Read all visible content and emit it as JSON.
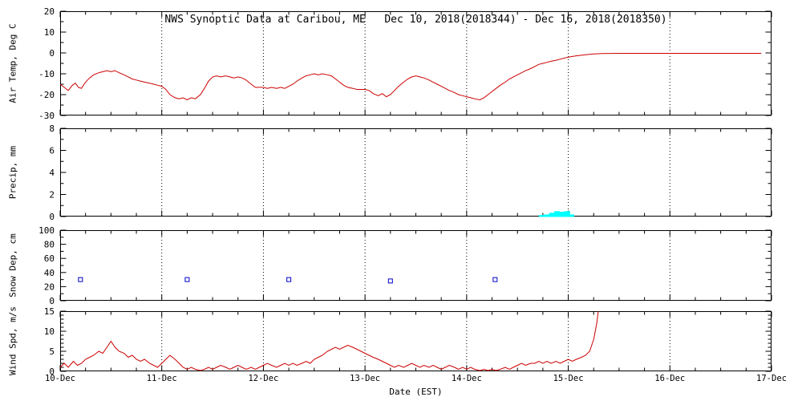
{
  "title": "NWS Synoptic Data at Caribou, ME   Dec 10, 2018(2018344) - Dec 16, 2018(2018350)",
  "xlabel": "Date (EST)",
  "x_ticks": [
    "10-Dec",
    "11-Dec",
    "12-Dec",
    "13-Dec",
    "14-Dec",
    "15-Dec",
    "16-Dec",
    "17-Dec"
  ],
  "colors": {
    "temp_line": "#cc0000",
    "wind_line": "#cc0000",
    "precip_bar": "#00ffff",
    "snow_marker": "#0000cc",
    "axis": "#000000",
    "grid": "#000000",
    "background": "#ffffff"
  },
  "chart_data": [
    {
      "type": "line",
      "name": "air-temp",
      "ylabel": "Air Temp, Deg C",
      "ylim": [
        -30,
        20
      ],
      "yticks": [
        -30,
        -20,
        -10,
        0,
        10,
        20
      ],
      "yminor": 5,
      "color": "#cc0000",
      "points": [
        [
          0.0,
          -15.0
        ],
        [
          0.04,
          -16.5
        ],
        [
          0.08,
          -18.0
        ],
        [
          0.12,
          -15.5
        ],
        [
          0.15,
          -14.5
        ],
        [
          0.18,
          -16.5
        ],
        [
          0.21,
          -17.0
        ],
        [
          0.25,
          -14.0
        ],
        [
          0.29,
          -12.0
        ],
        [
          0.33,
          -10.5
        ],
        [
          0.38,
          -9.5
        ],
        [
          0.42,
          -9.0
        ],
        [
          0.46,
          -8.5
        ],
        [
          0.5,
          -9.0
        ],
        [
          0.54,
          -8.5
        ],
        [
          0.58,
          -9.5
        ],
        [
          0.63,
          -10.5
        ],
        [
          0.67,
          -11.5
        ],
        [
          0.71,
          -12.5
        ],
        [
          0.75,
          -13.0
        ],
        [
          0.79,
          -13.5
        ],
        [
          0.83,
          -14.0
        ],
        [
          0.88,
          -14.5
        ],
        [
          0.92,
          -15.0
        ],
        [
          0.96,
          -15.5
        ],
        [
          1.0,
          -16.0
        ],
        [
          1.04,
          -17.5
        ],
        [
          1.08,
          -20.0
        ],
        [
          1.13,
          -21.5
        ],
        [
          1.17,
          -22.0
        ],
        [
          1.21,
          -21.5
        ],
        [
          1.25,
          -22.5
        ],
        [
          1.29,
          -21.5
        ],
        [
          1.33,
          -22.0
        ],
        [
          1.38,
          -20.0
        ],
        [
          1.42,
          -17.0
        ],
        [
          1.46,
          -13.5
        ],
        [
          1.5,
          -11.5
        ],
        [
          1.54,
          -11.0
        ],
        [
          1.58,
          -11.5
        ],
        [
          1.63,
          -11.0
        ],
        [
          1.67,
          -11.5
        ],
        [
          1.71,
          -12.0
        ],
        [
          1.75,
          -11.5
        ],
        [
          1.79,
          -12.0
        ],
        [
          1.83,
          -13.0
        ],
        [
          1.88,
          -15.0
        ],
        [
          1.92,
          -16.5
        ],
        [
          1.96,
          -16.5
        ],
        [
          2.0,
          -16.5
        ],
        [
          2.04,
          -17.0
        ],
        [
          2.08,
          -16.5
        ],
        [
          2.13,
          -17.0
        ],
        [
          2.17,
          -16.5
        ],
        [
          2.21,
          -17.0
        ],
        [
          2.25,
          -16.0
        ],
        [
          2.29,
          -15.0
        ],
        [
          2.33,
          -13.5
        ],
        [
          2.38,
          -12.0
        ],
        [
          2.42,
          -11.0
        ],
        [
          2.46,
          -10.5
        ],
        [
          2.5,
          -10.0
        ],
        [
          2.54,
          -10.5
        ],
        [
          2.58,
          -10.0
        ],
        [
          2.63,
          -10.5
        ],
        [
          2.67,
          -11.0
        ],
        [
          2.71,
          -12.5
        ],
        [
          2.75,
          -14.0
        ],
        [
          2.79,
          -15.5
        ],
        [
          2.83,
          -16.5
        ],
        [
          2.88,
          -17.0
        ],
        [
          2.92,
          -17.5
        ],
        [
          2.96,
          -17.5
        ],
        [
          3.0,
          -17.5
        ],
        [
          3.04,
          -18.0
        ],
        [
          3.08,
          -19.5
        ],
        [
          3.13,
          -20.5
        ],
        [
          3.17,
          -19.5
        ],
        [
          3.21,
          -21.0
        ],
        [
          3.25,
          -20.0
        ],
        [
          3.29,
          -18.0
        ],
        [
          3.33,
          -16.0
        ],
        [
          3.38,
          -14.0
        ],
        [
          3.42,
          -12.5
        ],
        [
          3.46,
          -11.5
        ],
        [
          3.5,
          -11.0
        ],
        [
          3.54,
          -11.5
        ],
        [
          3.58,
          -12.0
        ],
        [
          3.63,
          -13.0
        ],
        [
          3.67,
          -14.0
        ],
        [
          3.71,
          -15.0
        ],
        [
          3.75,
          -16.0
        ],
        [
          3.79,
          -17.0
        ],
        [
          3.83,
          -18.0
        ],
        [
          3.88,
          -19.0
        ],
        [
          3.92,
          -20.0
        ],
        [
          3.96,
          -20.5
        ],
        [
          4.0,
          -21.0
        ],
        [
          4.04,
          -21.5
        ],
        [
          4.08,
          -22.0
        ],
        [
          4.13,
          -22.5
        ],
        [
          4.17,
          -21.5
        ],
        [
          4.21,
          -20.0
        ],
        [
          4.25,
          -18.5
        ],
        [
          4.29,
          -17.0
        ],
        [
          4.33,
          -15.5
        ],
        [
          4.38,
          -14.0
        ],
        [
          4.42,
          -12.5
        ],
        [
          4.46,
          -11.5
        ],
        [
          4.5,
          -10.5
        ],
        [
          4.54,
          -9.5
        ],
        [
          4.58,
          -8.5
        ],
        [
          4.63,
          -7.5
        ],
        [
          4.67,
          -6.5
        ],
        [
          4.71,
          -5.5
        ],
        [
          4.75,
          -5.0
        ],
        [
          4.79,
          -4.5
        ],
        [
          4.83,
          -4.0
        ],
        [
          4.88,
          -3.5
        ],
        [
          4.92,
          -3.0
        ],
        [
          4.96,
          -2.5
        ],
        [
          5.0,
          -2.0
        ],
        [
          5.04,
          -1.7
        ],
        [
          5.08,
          -1.4
        ],
        [
          5.13,
          -1.1
        ],
        [
          5.17,
          -0.9
        ],
        [
          5.21,
          -0.7
        ],
        [
          5.25,
          -0.5
        ],
        [
          5.29,
          -0.4
        ],
        [
          5.33,
          -0.3
        ],
        [
          5.5,
          -0.2
        ],
        [
          5.75,
          -0.2
        ],
        [
          6.0,
          -0.2
        ],
        [
          6.25,
          -0.2
        ],
        [
          6.5,
          -0.2
        ],
        [
          6.75,
          -0.2
        ],
        [
          6.9,
          -0.2
        ]
      ]
    },
    {
      "type": "bar",
      "name": "precip",
      "ylabel": "Precip, mm",
      "ylim": [
        0,
        8
      ],
      "yticks": [
        0,
        2,
        4,
        6,
        8
      ],
      "yminor": 1,
      "color": "#00ffff",
      "bar_width_days": 0.05,
      "points": [
        [
          4.74,
          0.1
        ],
        [
          4.79,
          0.15
        ],
        [
          4.84,
          0.3
        ],
        [
          4.89,
          0.45
        ],
        [
          4.94,
          0.4
        ],
        [
          4.99,
          0.45
        ],
        [
          5.03,
          0.15
        ]
      ]
    },
    {
      "type": "scatter",
      "name": "snow-depth",
      "ylabel": "Snow Dep, cm",
      "ylim": [
        0,
        100
      ],
      "yticks": [
        0,
        20,
        40,
        60,
        80,
        100
      ],
      "yminor": 10,
      "color": "#0000cc",
      "points": [
        [
          0.2,
          30
        ],
        [
          1.25,
          30
        ],
        [
          2.25,
          30
        ],
        [
          3.25,
          28
        ],
        [
          4.28,
          30
        ]
      ]
    },
    {
      "type": "line",
      "name": "wind-speed",
      "ylabel": "Wind Spd, m/s",
      "ylim": [
        0,
        15
      ],
      "yticks": [
        0,
        5,
        10,
        15
      ],
      "yminor": 1,
      "color": "#cc0000",
      "points": [
        [
          0.0,
          1.0
        ],
        [
          0.04,
          2.0
        ],
        [
          0.08,
          1.0
        ],
        [
          0.13,
          2.5
        ],
        [
          0.17,
          1.5
        ],
        [
          0.21,
          2.0
        ],
        [
          0.25,
          3.0
        ],
        [
          0.29,
          3.5
        ],
        [
          0.33,
          4.0
        ],
        [
          0.38,
          5.0
        ],
        [
          0.42,
          4.5
        ],
        [
          0.46,
          6.0
        ],
        [
          0.5,
          7.5
        ],
        [
          0.54,
          6.0
        ],
        [
          0.58,
          5.0
        ],
        [
          0.63,
          4.5
        ],
        [
          0.67,
          3.5
        ],
        [
          0.71,
          4.0
        ],
        [
          0.75,
          3.0
        ],
        [
          0.79,
          2.5
        ],
        [
          0.83,
          3.0
        ],
        [
          0.88,
          2.0
        ],
        [
          0.92,
          1.5
        ],
        [
          0.96,
          1.0
        ],
        [
          1.0,
          2.0
        ],
        [
          1.04,
          3.0
        ],
        [
          1.08,
          4.0
        ],
        [
          1.13,
          3.0
        ],
        [
          1.17,
          2.0
        ],
        [
          1.21,
          1.0
        ],
        [
          1.25,
          0.5
        ],
        [
          1.29,
          1.0
        ],
        [
          1.33,
          0.5
        ],
        [
          1.38,
          0.2
        ],
        [
          1.42,
          0.5
        ],
        [
          1.46,
          1.0
        ],
        [
          1.5,
          0.5
        ],
        [
          1.54,
          1.0
        ],
        [
          1.58,
          1.5
        ],
        [
          1.63,
          1.0
        ],
        [
          1.67,
          0.5
        ],
        [
          1.71,
          1.0
        ],
        [
          1.75,
          1.5
        ],
        [
          1.79,
          1.0
        ],
        [
          1.83,
          0.5
        ],
        [
          1.88,
          1.0
        ],
        [
          1.92,
          0.5
        ],
        [
          1.96,
          1.0
        ],
        [
          2.0,
          1.5
        ],
        [
          2.04,
          2.0
        ],
        [
          2.08,
          1.5
        ],
        [
          2.13,
          1.0
        ],
        [
          2.17,
          1.5
        ],
        [
          2.21,
          2.0
        ],
        [
          2.25,
          1.5
        ],
        [
          2.29,
          2.0
        ],
        [
          2.33,
          1.5
        ],
        [
          2.38,
          2.0
        ],
        [
          2.42,
          2.5
        ],
        [
          2.46,
          2.0
        ],
        [
          2.5,
          3.0
        ],
        [
          2.54,
          3.5
        ],
        [
          2.58,
          4.0
        ],
        [
          2.63,
          5.0
        ],
        [
          2.67,
          5.5
        ],
        [
          2.71,
          6.0
        ],
        [
          2.75,
          5.5
        ],
        [
          2.79,
          6.0
        ],
        [
          2.83,
          6.5
        ],
        [
          2.88,
          6.0
        ],
        [
          2.92,
          5.5
        ],
        [
          2.96,
          5.0
        ],
        [
          3.0,
          4.5
        ],
        [
          3.04,
          4.0
        ],
        [
          3.08,
          3.5
        ],
        [
          3.13,
          3.0
        ],
        [
          3.17,
          2.5
        ],
        [
          3.21,
          2.0
        ],
        [
          3.25,
          1.5
        ],
        [
          3.29,
          1.0
        ],
        [
          3.33,
          1.5
        ],
        [
          3.38,
          1.0
        ],
        [
          3.42,
          1.5
        ],
        [
          3.46,
          2.0
        ],
        [
          3.5,
          1.5
        ],
        [
          3.54,
          1.0
        ],
        [
          3.58,
          1.5
        ],
        [
          3.63,
          1.0
        ],
        [
          3.67,
          1.5
        ],
        [
          3.71,
          1.0
        ],
        [
          3.75,
          0.5
        ],
        [
          3.79,
          1.0
        ],
        [
          3.83,
          1.5
        ],
        [
          3.88,
          1.0
        ],
        [
          3.92,
          0.5
        ],
        [
          3.96,
          1.0
        ],
        [
          4.0,
          0.5
        ],
        [
          4.04,
          1.0
        ],
        [
          4.08,
          0.5
        ],
        [
          4.13,
          0.2
        ],
        [
          4.17,
          0.5
        ],
        [
          4.21,
          0.2
        ],
        [
          4.25,
          0.5
        ],
        [
          4.29,
          0.2
        ],
        [
          4.33,
          0.5
        ],
        [
          4.38,
          1.0
        ],
        [
          4.42,
          0.5
        ],
        [
          4.46,
          1.0
        ],
        [
          4.5,
          1.5
        ],
        [
          4.54,
          2.0
        ],
        [
          4.58,
          1.5
        ],
        [
          4.63,
          2.0
        ],
        [
          4.67,
          2.0
        ],
        [
          4.71,
          2.5
        ],
        [
          4.75,
          2.0
        ],
        [
          4.79,
          2.5
        ],
        [
          4.83,
          2.0
        ],
        [
          4.88,
          2.5
        ],
        [
          4.92,
          2.0
        ],
        [
          4.96,
          2.5
        ],
        [
          5.0,
          3.0
        ],
        [
          5.04,
          2.5
        ],
        [
          5.08,
          3.0
        ],
        [
          5.13,
          3.5
        ],
        [
          5.17,
          4.0
        ],
        [
          5.21,
          5.0
        ],
        [
          5.25,
          8.0
        ],
        [
          5.28,
          12.0
        ],
        [
          5.3,
          16.0
        ]
      ]
    }
  ]
}
